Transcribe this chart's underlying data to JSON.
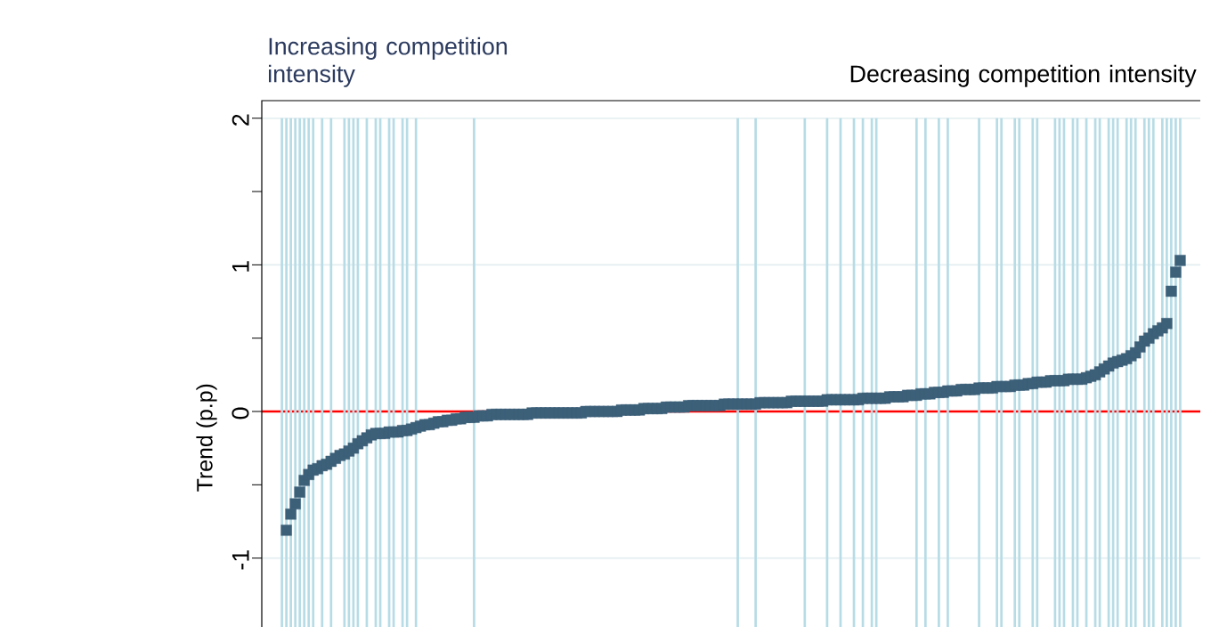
{
  "chart_data": {
    "type": "scatter",
    "ylabel": "Trend (p.p)",
    "annotations": [
      "Increasing competition intensity",
      "Decreasing competition intensity"
    ],
    "categories": [
      null,
      null,
      null,
      null,
      null,
      null,
      null,
      null,
      null,
      null,
      null,
      null,
      null,
      null,
      null,
      null,
      null,
      null,
      null,
      null,
      null,
      null,
      null,
      null,
      null,
      null,
      null,
      null,
      null,
      null,
      null,
      null,
      null,
      null,
      null,
      null,
      null,
      null,
      null,
      null,
      null,
      null,
      null,
      null,
      null,
      null,
      null,
      null,
      null,
      null,
      null,
      null,
      null,
      null,
      null,
      null,
      null,
      null,
      null,
      null,
      null,
      null,
      null,
      null,
      null,
      null,
      null,
      null,
      null,
      null,
      null,
      null,
      null,
      null,
      null,
      null,
      null,
      null,
      null,
      null,
      null,
      null,
      null,
      null,
      null,
      null,
      null,
      null,
      null,
      null,
      null,
      null,
      null,
      null,
      null,
      null,
      null,
      null,
      null,
      null,
      null,
      null,
      null,
      null,
      null,
      null,
      null,
      null,
      null,
      null,
      null,
      null,
      null,
      null,
      null,
      null,
      null,
      null,
      null,
      null,
      null,
      null,
      null,
      null,
      null,
      null,
      null,
      null,
      null,
      null,
      null,
      null,
      null,
      null,
      null,
      null,
      null,
      null,
      null,
      null,
      null,
      null,
      null,
      null,
      null,
      null,
      null,
      null,
      null,
      null,
      null,
      null,
      null,
      null,
      null,
      null,
      null,
      null,
      null,
      null,
      null,
      null,
      null,
      null,
      null,
      null,
      null,
      null,
      null,
      null,
      null,
      null,
      null,
      null,
      null,
      null,
      null,
      null,
      null,
      null,
      null,
      null,
      null,
      null,
      null,
      null,
      null,
      null,
      null,
      null,
      null,
      null,
      null,
      null,
      null,
      null,
      null,
      null,
      null,
      null,
      null,
      null,
      null,
      null,
      null,
      null,
      null,
      null,
      null,
      null
    ],
    "series": [
      {
        "type": "bar",
        "color": "#b7dce6",
        "base": [
          null,
          null,
          null,
          null,
          -1.47,
          -1.47,
          -1.47,
          -1.47,
          -1.47,
          -1.47,
          -1.47,
          -1.47,
          null,
          -1.47,
          null,
          -1.47,
          null,
          null,
          -1.47,
          -1.47,
          -1.47,
          -1.47,
          null,
          -1.47,
          null,
          -1.47,
          -1.47,
          null,
          -1.47,
          -1.47,
          null,
          -1.47,
          -1.47,
          null,
          -1.47,
          null,
          null,
          null,
          null,
          null,
          null,
          null,
          null,
          null,
          null,
          null,
          null,
          -1.47,
          null,
          null,
          null,
          null,
          null,
          null,
          null,
          null,
          null,
          null,
          null,
          null,
          null,
          null,
          null,
          null,
          null,
          null,
          null,
          null,
          null,
          null,
          null,
          null,
          null,
          null,
          null,
          null,
          null,
          null,
          null,
          null,
          null,
          null,
          null,
          null,
          null,
          null,
          null,
          null,
          null,
          null,
          null,
          null,
          null,
          null,
          null,
          null,
          null,
          null,
          null,
          null,
          null,
          null,
          null,
          null,
          null,
          null,
          -1.47,
          null,
          null,
          null,
          -1.47,
          null,
          null,
          null,
          null,
          null,
          null,
          null,
          null,
          null,
          null,
          -1.47,
          null,
          null,
          null,
          null,
          -1.47,
          null,
          null,
          -1.47,
          null,
          null,
          -1.47,
          null,
          -1.47,
          null,
          -1.47,
          -1.47,
          null,
          null,
          null,
          null,
          null,
          null,
          null,
          null,
          -1.47,
          null,
          -1.47,
          null,
          null,
          -1.47,
          null,
          -1.47,
          null,
          null,
          null,
          null,
          null,
          null,
          -1.47,
          null,
          null,
          null,
          -1.47,
          -1.47,
          null,
          null,
          -1.47,
          -1.47,
          null,
          null,
          -1.47,
          -1.47,
          null,
          null,
          null,
          -1.47,
          -1.47,
          -1.47,
          null,
          -1.47,
          -1.47,
          null,
          -1.47,
          null,
          -1.47,
          -1.47,
          null,
          -1.47,
          -1.47,
          -1.47,
          null,
          -1.47,
          -1.47,
          -1.47,
          null,
          -1.47,
          -1.47,
          -1.47,
          null,
          -1.47,
          -1.47,
          -1.47,
          -1.47,
          -1.47,
          null,
          null,
          null,
          null
        ],
        "values": [
          null,
          null,
          null,
          null,
          3.47,
          3.47,
          3.47,
          3.47,
          3.47,
          3.47,
          3.47,
          3.47,
          null,
          3.47,
          null,
          3.47,
          null,
          null,
          3.47,
          3.47,
          3.47,
          3.47,
          null,
          3.47,
          null,
          3.47,
          3.47,
          null,
          3.47,
          3.47,
          null,
          3.47,
          3.47,
          null,
          3.47,
          null,
          null,
          null,
          null,
          null,
          null,
          null,
          null,
          null,
          null,
          null,
          null,
          3.47,
          null,
          null,
          null,
          null,
          null,
          null,
          null,
          null,
          null,
          null,
          null,
          null,
          null,
          null,
          null,
          null,
          null,
          null,
          null,
          null,
          null,
          null,
          null,
          null,
          null,
          null,
          null,
          null,
          null,
          null,
          null,
          null,
          null,
          null,
          null,
          null,
          null,
          null,
          null,
          null,
          null,
          null,
          null,
          null,
          null,
          null,
          null,
          null,
          null,
          null,
          null,
          null,
          null,
          null,
          null,
          null,
          null,
          null,
          3.47,
          null,
          null,
          null,
          3.47,
          null,
          null,
          null,
          null,
          null,
          null,
          null,
          null,
          null,
          null,
          3.47,
          null,
          null,
          null,
          null,
          3.47,
          null,
          null,
          3.47,
          null,
          null,
          3.47,
          null,
          3.47,
          null,
          3.47,
          3.47,
          null,
          null,
          null,
          null,
          null,
          null,
          null,
          null,
          3.47,
          null,
          3.47,
          null,
          null,
          3.47,
          null,
          3.47,
          null,
          null,
          null,
          null,
          null,
          null,
          3.47,
          null,
          null,
          null,
          3.47,
          3.47,
          null,
          null,
          3.47,
          3.47,
          null,
          null,
          3.47,
          3.47,
          null,
          null,
          null,
          3.47,
          3.47,
          3.47,
          null,
          3.47,
          3.47,
          null,
          3.47,
          null,
          3.47,
          3.47,
          null,
          3.47,
          3.47,
          3.47,
          null,
          3.47,
          3.47,
          3.47,
          null,
          3.47,
          3.47,
          3.47,
          null,
          3.47,
          3.47,
          3.47,
          3.47,
          3.47,
          null,
          null,
          null,
          null
        ]
      },
      {
        "color": "#3d6079",
        "values": [
          null,
          null,
          null,
          null,
          null,
          -0.81,
          -0.7,
          -0.63,
          -0.55,
          -0.47,
          -0.43,
          -0.4,
          -0.39,
          -0.37,
          -0.36,
          -0.34,
          -0.32,
          -0.3,
          -0.29,
          -0.27,
          -0.25,
          -0.22,
          -0.2,
          -0.18,
          -0.16,
          -0.15,
          -0.15,
          -0.15,
          -0.14,
          -0.14,
          -0.14,
          -0.13,
          -0.13,
          -0.12,
          -0.11,
          -0.1,
          -0.09,
          -0.09,
          -0.08,
          -0.07,
          -0.07,
          -0.06,
          -0.06,
          -0.05,
          -0.05,
          -0.04,
          -0.04,
          -0.04,
          -0.03,
          -0.03,
          -0.03,
          -0.02,
          -0.02,
          -0.02,
          -0.02,
          -0.02,
          -0.02,
          -0.02,
          -0.02,
          -0.02,
          -0.01,
          -0.01,
          -0.01,
          -0.01,
          -0.01,
          -0.01,
          -0.01,
          -0.01,
          -0.01,
          -0.01,
          -0.01,
          -0.01,
          0,
          0,
          0,
          0,
          0,
          0,
          0,
          0,
          0.01,
          0.01,
          0.01,
          0.01,
          0.01,
          0.02,
          0.02,
          0.02,
          0.02,
          0.02,
          0.03,
          0.03,
          0.03,
          0.03,
          0.03,
          0.04,
          0.04,
          0.04,
          0.04,
          0.04,
          0.04,
          0.04,
          0.04,
          0.05,
          0.05,
          0.05,
          0.05,
          0.05,
          0.05,
          0.05,
          0.05,
          0.06,
          0.06,
          0.06,
          0.06,
          0.06,
          0.06,
          0.06,
          0.07,
          0.07,
          0.07,
          0.07,
          0.07,
          0.07,
          0.07,
          0.07,
          0.08,
          0.08,
          0.08,
          0.08,
          0.08,
          0.08,
          0.08,
          0.08,
          0.09,
          0.09,
          0.09,
          0.09,
          0.09,
          0.09,
          0.1,
          0.1,
          0.1,
          0.1,
          0.11,
          0.11,
          0.11,
          0.12,
          0.12,
          0.12,
          0.13,
          0.13,
          0.13,
          0.14,
          0.14,
          0.14,
          0.15,
          0.15,
          0.15,
          0.15,
          0.16,
          0.16,
          0.16,
          0.16,
          0.17,
          0.17,
          0.17,
          0.17,
          0.18,
          0.18,
          0.18,
          0.19,
          0.19,
          0.2,
          0.2,
          0.2,
          0.21,
          0.21,
          0.21,
          0.21,
          0.22,
          0.22,
          0.22,
          0.22,
          0.23,
          0.24,
          0.25,
          0.27,
          0.29,
          0.31,
          0.33,
          0.34,
          0.35,
          0.36,
          0.38,
          0.4,
          0.44,
          0.48,
          0.5,
          0.53,
          0.55,
          0.57,
          0.6,
          0.82,
          0.95,
          1.03,
          null,
          null,
          null,
          null
        ]
      }
    ],
    "marker": "square",
    "ylim": [
      -1.47,
      2.12
    ],
    "yticks": [
      -1,
      {
        "value": -0.5,
        "label": null
      },
      0,
      {
        "value": 0.5,
        "label": null
      },
      1,
      {
        "value": 1.5,
        "label": null
      },
      2
    ],
    "tick_labels": "y",
    "grid": "y",
    "ref_lines": [
      {
        "axis": "y",
        "value": 0,
        "color": "#ff0000"
      }
    ]
  }
}
